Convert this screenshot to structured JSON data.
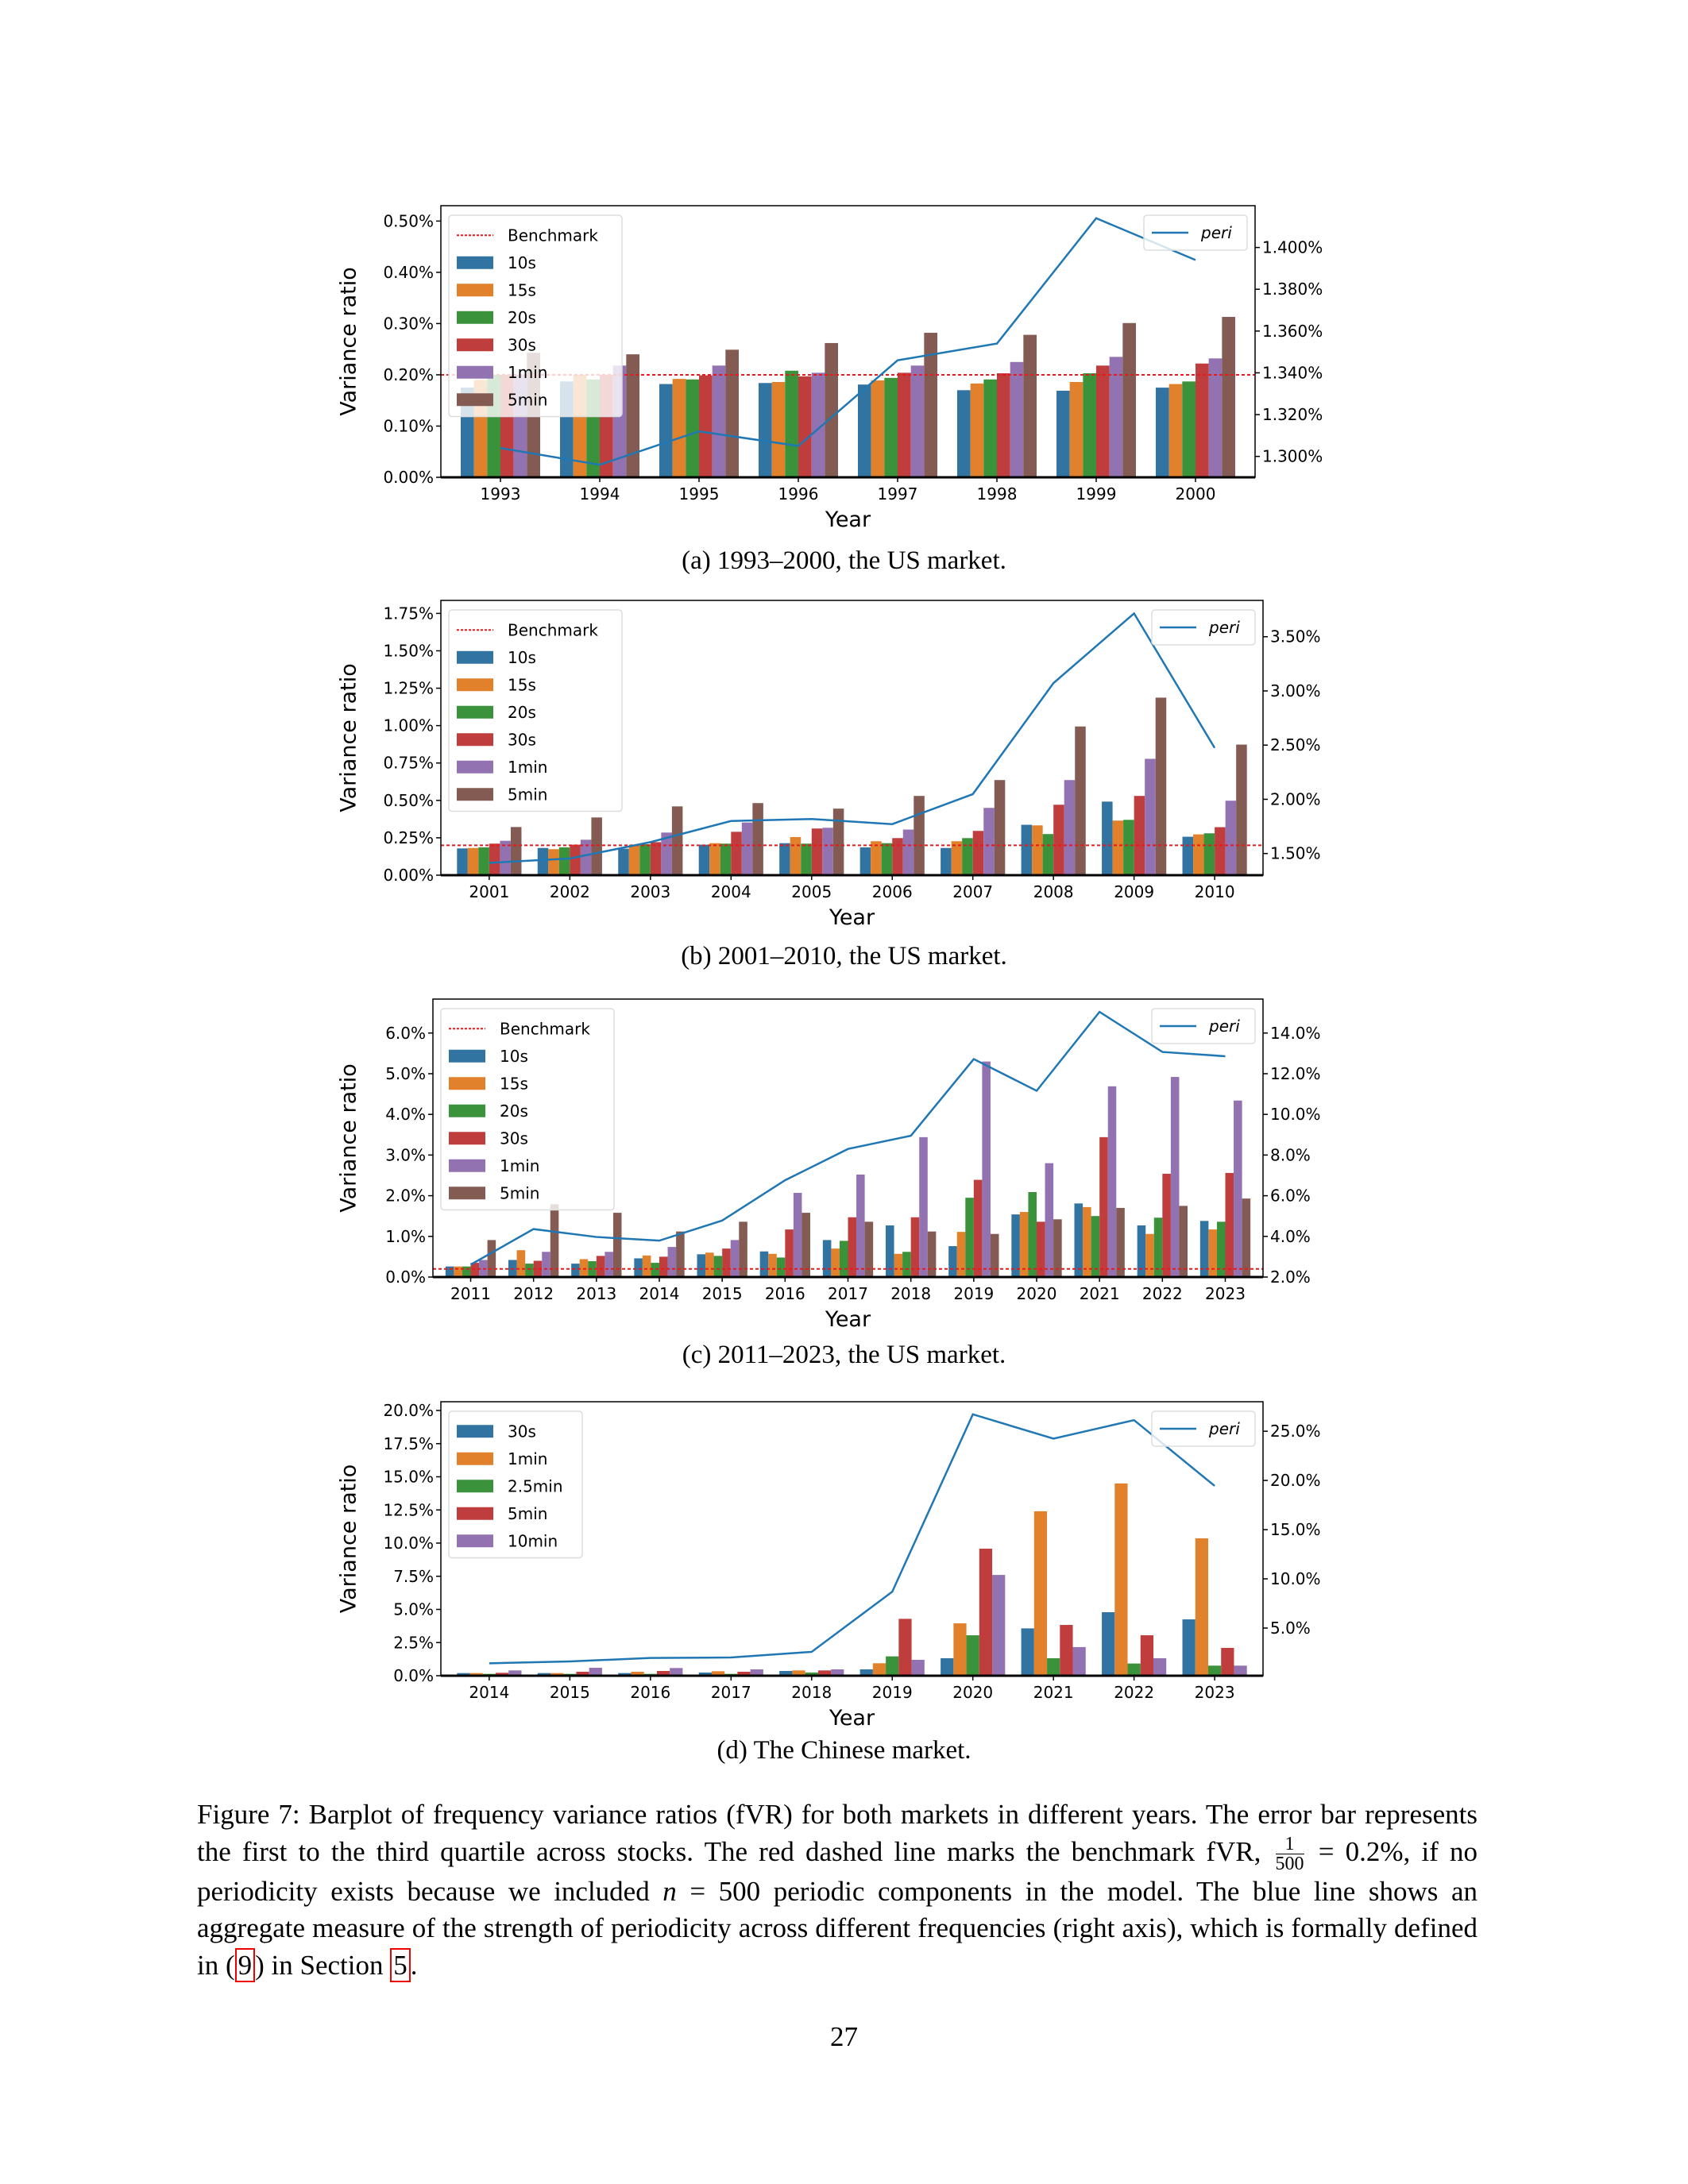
{
  "colors": {
    "bars": [
      "#3274a1",
      "#e1812c",
      "#3a923a",
      "#c03d3e",
      "#9372b2",
      "#845b53"
    ],
    "peri": "#1f77b4",
    "benchmark": "#e41a1c"
  },
  "chart_data": [
    {
      "type": "bar",
      "caption": "(a) 1993–2000, the US market.",
      "xlabel": "Year",
      "ylabel": "Variance ratio",
      "categories": [
        "1993",
        "1994",
        "1995",
        "1996",
        "1997",
        "1998",
        "1999",
        "2000"
      ],
      "ylim": [
        0,
        0.53
      ],
      "yticks": [
        {
          "v": 0,
          "label": "0.00%"
        },
        {
          "v": 0.1,
          "label": "0.10%"
        },
        {
          "v": 0.2,
          "label": "0.20%"
        },
        {
          "v": 0.3,
          "label": "0.30%"
        },
        {
          "v": 0.4,
          "label": "0.40%"
        },
        {
          "v": 0.5,
          "label": "0.50%"
        }
      ],
      "y2lim": [
        1.29,
        1.42
      ],
      "y2ticks": [
        {
          "v": 1.3,
          "label": "1.300%"
        },
        {
          "v": 1.32,
          "label": "1.320%"
        },
        {
          "v": 1.34,
          "label": "1.340%"
        },
        {
          "v": 1.36,
          "label": "1.360%"
        },
        {
          "v": 1.38,
          "label": "1.380%"
        },
        {
          "v": 1.4,
          "label": "1.400%"
        }
      ],
      "benchmark": {
        "name": "Benchmark",
        "value": 0.2
      },
      "series": [
        {
          "name": "10s",
          "values": [
            0.175,
            0.187,
            0.182,
            0.184,
            0.181,
            0.17,
            0.169,
            0.175
          ]
        },
        {
          "name": "15s",
          "values": [
            0.19,
            0.2,
            0.192,
            0.186,
            0.189,
            0.183,
            0.186,
            0.182
          ]
        },
        {
          "name": "20s",
          "values": [
            0.2,
            0.191,
            0.191,
            0.208,
            0.194,
            0.191,
            0.203,
            0.187
          ]
        },
        {
          "name": "30s",
          "values": [
            0.2,
            0.2,
            0.199,
            0.197,
            0.204,
            0.203,
            0.218,
            0.222
          ]
        },
        {
          "name": "1min",
          "values": [
            0.2,
            0.218,
            0.218,
            0.204,
            0.218,
            0.225,
            0.235,
            0.232
          ]
        },
        {
          "name": "5min",
          "values": [
            0.243,
            0.24,
            0.249,
            0.262,
            0.282,
            0.278,
            0.301,
            0.313
          ]
        }
      ],
      "line": {
        "name": "peri",
        "values": [
          1.304,
          1.296,
          1.312,
          1.305,
          1.346,
          1.354,
          1.414,
          1.394
        ]
      }
    },
    {
      "type": "bar",
      "caption": "(b) 2001–2010, the US market.",
      "xlabel": "Year",
      "ylabel": "Variance ratio",
      "categories": [
        "2001",
        "2002",
        "2003",
        "2004",
        "2005",
        "2006",
        "2007",
        "2008",
        "2009",
        "2010"
      ],
      "ylim": [
        0,
        1.837
      ],
      "yticks": [
        {
          "v": 0,
          "label": "0.00%"
        },
        {
          "v": 0.25,
          "label": "0.25%"
        },
        {
          "v": 0.5,
          "label": "0.50%"
        },
        {
          "v": 0.75,
          "label": "0.75%"
        },
        {
          "v": 1.0,
          "label": "1.00%"
        },
        {
          "v": 1.25,
          "label": "1.25%"
        },
        {
          "v": 1.5,
          "label": "1.50%"
        },
        {
          "v": 1.75,
          "label": "1.75%"
        }
      ],
      "y2lim": [
        1.3,
        3.835
      ],
      "y2ticks": [
        {
          "v": 1.5,
          "label": "1.50%"
        },
        {
          "v": 2.0,
          "label": "2.00%"
        },
        {
          "v": 2.5,
          "label": "2.50%"
        },
        {
          "v": 3.0,
          "label": "3.00%"
        },
        {
          "v": 3.5,
          "label": "3.50%"
        }
      ],
      "benchmark": {
        "name": "Benchmark",
        "value": 0.2
      },
      "series": [
        {
          "name": "10s",
          "values": [
            0.179,
            0.182,
            0.177,
            0.204,
            0.214,
            0.186,
            0.182,
            0.337,
            0.492,
            0.257
          ]
        },
        {
          "name": "15s",
          "values": [
            0.182,
            0.174,
            0.204,
            0.214,
            0.255,
            0.227,
            0.227,
            0.333,
            0.365,
            0.273
          ]
        },
        {
          "name": "20s",
          "values": [
            0.186,
            0.186,
            0.207,
            0.211,
            0.211,
            0.214,
            0.248,
            0.275,
            0.37,
            0.28
          ]
        },
        {
          "name": "30s",
          "values": [
            0.211,
            0.204,
            0.221,
            0.29,
            0.312,
            0.248,
            0.296,
            0.471,
            0.53,
            0.321
          ]
        },
        {
          "name": "1min",
          "values": [
            0.23,
            0.237,
            0.285,
            0.352,
            0.317,
            0.305,
            0.45,
            0.636,
            0.778,
            0.498
          ]
        },
        {
          "name": "5min",
          "values": [
            0.322,
            0.386,
            0.46,
            0.482,
            0.445,
            0.53,
            0.636,
            0.994,
            1.187,
            0.873
          ]
        }
      ],
      "line": {
        "name": "peri",
        "values": [
          1.414,
          1.454,
          1.605,
          1.8,
          1.818,
          1.771,
          2.048,
          3.072,
          3.715,
          2.474
        ]
      }
    },
    {
      "type": "bar",
      "caption": "(c) 2011–2023, the US market.",
      "xlabel": "Year",
      "ylabel": "Variance ratio",
      "categories": [
        "2011",
        "2012",
        "2013",
        "2014",
        "2015",
        "2016",
        "2017",
        "2018",
        "2019",
        "2020",
        "2021",
        "2022",
        "2023"
      ],
      "ylim": [
        0,
        6.835
      ],
      "yticks": [
        {
          "v": 0,
          "label": "0.0%"
        },
        {
          "v": 1,
          "label": "1.0%"
        },
        {
          "v": 2,
          "label": "2.0%"
        },
        {
          "v": 3,
          "label": "3.0%"
        },
        {
          "v": 4,
          "label": "4.0%"
        },
        {
          "v": 5,
          "label": "5.0%"
        },
        {
          "v": 6,
          "label": "6.0%"
        }
      ],
      "y2lim": [
        2.0,
        15.67
      ],
      "y2ticks": [
        {
          "v": 2,
          "label": "2.0%"
        },
        {
          "v": 4,
          "label": "4.0%"
        },
        {
          "v": 6,
          "label": "6.0%"
        },
        {
          "v": 8,
          "label": "8.0%"
        },
        {
          "v": 10,
          "label": "10.0%"
        },
        {
          "v": 12,
          "label": "12.0%"
        },
        {
          "v": 14,
          "label": "14.0%"
        }
      ],
      "benchmark": {
        "name": "Benchmark",
        "value": 0.2
      },
      "series": [
        {
          "name": "10s",
          "values": [
            0.26,
            0.42,
            0.33,
            0.46,
            0.56,
            0.63,
            0.91,
            1.27,
            0.76,
            1.54,
            1.81,
            1.27,
            1.38
          ]
        },
        {
          "name": "15s",
          "values": [
            0.26,
            0.66,
            0.44,
            0.53,
            0.6,
            0.57,
            0.7,
            0.57,
            1.11,
            1.6,
            1.72,
            1.06,
            1.17
          ]
        },
        {
          "name": "20s",
          "values": [
            0.26,
            0.33,
            0.39,
            0.35,
            0.52,
            0.48,
            0.89,
            0.62,
            1.95,
            2.09,
            1.5,
            1.46,
            1.36
          ]
        },
        {
          "name": "30s",
          "values": [
            0.35,
            0.4,
            0.52,
            0.5,
            0.7,
            1.17,
            1.47,
            1.47,
            2.39,
            1.36,
            3.44,
            2.54,
            2.56
          ]
        },
        {
          "name": "1min",
          "values": [
            0.42,
            0.62,
            0.62,
            0.74,
            0.91,
            2.07,
            2.52,
            3.44,
            5.3,
            2.8,
            4.69,
            4.92,
            4.34
          ]
        },
        {
          "name": "5min",
          "values": [
            0.91,
            1.79,
            1.58,
            1.12,
            1.36,
            1.58,
            1.36,
            1.12,
            1.06,
            1.42,
            1.7,
            1.75,
            1.93
          ]
        }
      ],
      "line": {
        "name": "peri",
        "values": [
          2.61,
          4.36,
          3.97,
          3.79,
          4.78,
          6.76,
          8.3,
          8.95,
          12.72,
          11.16,
          15.04,
          13.07,
          12.86
        ]
      }
    },
    {
      "type": "bar",
      "caption": "(d) The Chinese market.",
      "xlabel": "Year",
      "ylabel": "Variance ratio",
      "categories": [
        "2014",
        "2015",
        "2016",
        "2017",
        "2018",
        "2019",
        "2020",
        "2021",
        "2022",
        "2023"
      ],
      "ylim": [
        0,
        20.66
      ],
      "yticks": [
        {
          "v": 0,
          "label": "0.0%"
        },
        {
          "v": 2.5,
          "label": "2.5%"
        },
        {
          "v": 5,
          "label": "5.0%"
        },
        {
          "v": 7.5,
          "label": "7.5%"
        },
        {
          "v": 10,
          "label": "10.0%"
        },
        {
          "v": 12.5,
          "label": "12.5%"
        },
        {
          "v": 15,
          "label": "15.0%"
        },
        {
          "v": 17.5,
          "label": "17.5%"
        },
        {
          "v": 20,
          "label": "20.0%"
        }
      ],
      "y2lim": [
        0.155,
        28.0
      ],
      "y2ticks": [
        {
          "v": 5,
          "label": "5.0%"
        },
        {
          "v": 10,
          "label": "10.0%"
        },
        {
          "v": 15,
          "label": "15.0%"
        },
        {
          "v": 20,
          "label": "20.0%"
        },
        {
          "v": 25,
          "label": "25.0%"
        }
      ],
      "benchmark": null,
      "series": [
        {
          "name": "30s",
          "values": [
            0.2,
            0.2,
            0.2,
            0.24,
            0.36,
            0.48,
            1.32,
            3.57,
            4.79,
            4.25
          ]
        },
        {
          "name": "1min",
          "values": [
            0.2,
            0.2,
            0.3,
            0.34,
            0.4,
            0.94,
            3.95,
            12.4,
            14.5,
            10.36
          ]
        },
        {
          "name": "2.5min",
          "values": [
            0.14,
            0.14,
            0.14,
            0.14,
            0.24,
            1.46,
            3.05,
            1.32,
            0.92,
            0.76
          ]
        },
        {
          "name": "5min",
          "values": [
            0.22,
            0.3,
            0.36,
            0.3,
            0.4,
            4.29,
            9.58,
            3.83,
            3.05,
            2.1
          ]
        },
        {
          "name": "10min",
          "values": [
            0.4,
            0.6,
            0.58,
            0.48,
            0.48,
            1.2,
            7.6,
            2.16,
            1.32,
            0.76
          ]
        }
      ],
      "line": {
        "name": "peri",
        "values": [
          1.42,
          1.61,
          1.96,
          2.01,
          2.58,
          8.69,
          26.72,
          24.25,
          26.13,
          19.45
        ]
      }
    }
  ],
  "caption": {
    "part1": "Figure 7: Barplot of frequency variance ratios (fVR) for both markets in different years. The error bar represents the first to the third quartile across stocks. The red dashed line marks the benchmark fVR, ",
    "frac_num": "1",
    "frac_den": "500",
    "part2": " = 0.2%, if no periodicity exists because we included ",
    "var_n": "n",
    "part3": " = 500 periodic components in the model. The blue line shows an aggregate measure of the strength of periodicity across different frequencies (right axis), which is formally defined in (",
    "ref_eq": "9",
    "part4": ") in Section ",
    "ref_sec": "5",
    "part5": "."
  },
  "page_number": "27"
}
